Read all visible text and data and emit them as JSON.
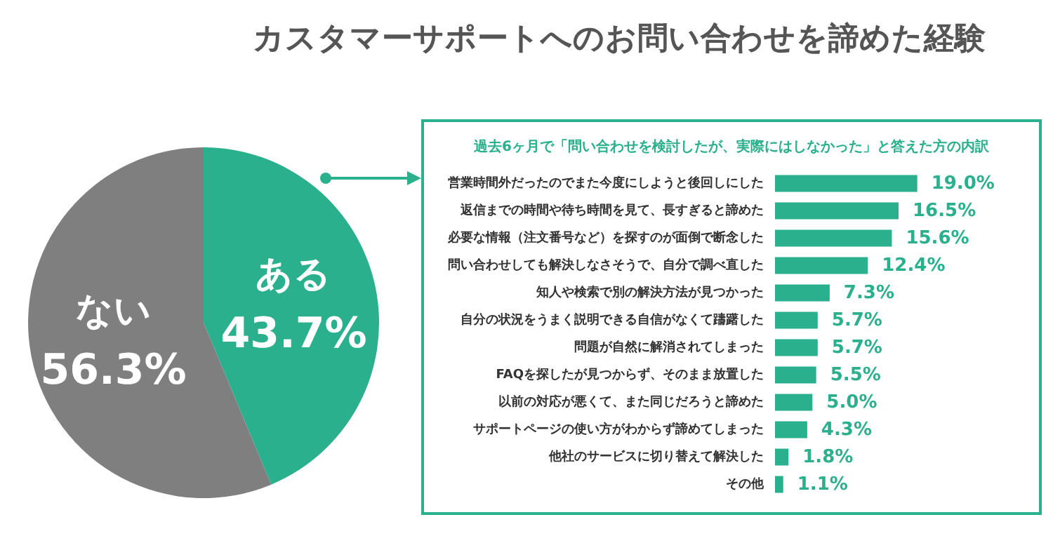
{
  "chart_data": [
    {
      "type": "pie",
      "title": "カスタマーサポートへのお問い合わせを諦めた経験",
      "categories": [
        "ある",
        "ない"
      ],
      "values": [
        43.7,
        56.3
      ],
      "colors": [
        "#2bb08e",
        "#7f7f7f"
      ],
      "value_labels": [
        "43.7%",
        "56.3%"
      ],
      "legend": false
    },
    {
      "type": "bar",
      "orientation": "horizontal",
      "title": "過去6ヶ月で「問い合わせを検討したが、実際にはしなかった」と答えた方の内訳",
      "categories": [
        "営業時間外だったのでまた今度にしようと後回しにした",
        "返信までの時間や待ち時間を見て、長すぎると諦めた",
        "必要な情報（注文番号など）を探すのが面倒で断念した",
        "問い合わせしても解決しなさそうで、自分で調べ直した",
        "知人や検索で別の解決方法が見つかった",
        "自分の状況をうまく説明できる自信がなくて躊躇した",
        "問題が自然に解消されてしまった",
        "FAQを探したが見つからず、そのまま放置した",
        "以前の対応が悪くて、また同じだろうと諦めた",
        "サポートページの使い方がわからず諦めてしまった",
        "他社のサービスに切り替えて解決した",
        "その他"
      ],
      "values": [
        19.0,
        16.5,
        15.6,
        12.4,
        7.3,
        5.7,
        5.7,
        5.5,
        5.0,
        4.3,
        1.8,
        1.1
      ],
      "value_labels": [
        "19.0%",
        "16.5%",
        "15.6%",
        "12.4%",
        "7.3%",
        "5.7%",
        "5.7%",
        "5.5%",
        "5.0%",
        "4.3%",
        "1.8%",
        "1.1%"
      ],
      "color": "#2bb08e",
      "legend": false
    }
  ]
}
